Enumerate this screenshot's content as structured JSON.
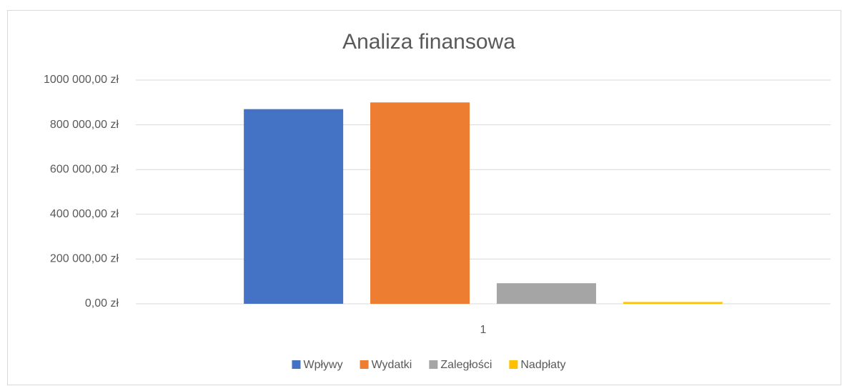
{
  "chart_data": {
    "type": "bar",
    "title": "Analiza finansowa",
    "categories": [
      "1"
    ],
    "series": [
      {
        "name": "Wpływy",
        "color": "#4472c4",
        "values": [
          870000
        ]
      },
      {
        "name": "Wydatki",
        "color": "#ed7d31",
        "values": [
          900000
        ]
      },
      {
        "name": "Zaległości",
        "color": "#a5a5a5",
        "values": [
          92000
        ]
      },
      {
        "name": "Nadpłaty",
        "color": "#ffc000",
        "values": [
          8000
        ]
      }
    ],
    "ylim": [
      0,
      1000000
    ],
    "yticks": [
      {
        "value": 0,
        "label": "0,00 zł"
      },
      {
        "value": 200000,
        "label": "200 000,00 zł"
      },
      {
        "value": 400000,
        "label": "400 000,00 zł"
      },
      {
        "value": 600000,
        "label": "600 000,00 zł"
      },
      {
        "value": 800000,
        "label": "800 000,00 zł"
      },
      {
        "value": 1000000,
        "label": "1000 000,00 zł"
      }
    ],
    "grid": true,
    "legend": "bottom"
  }
}
